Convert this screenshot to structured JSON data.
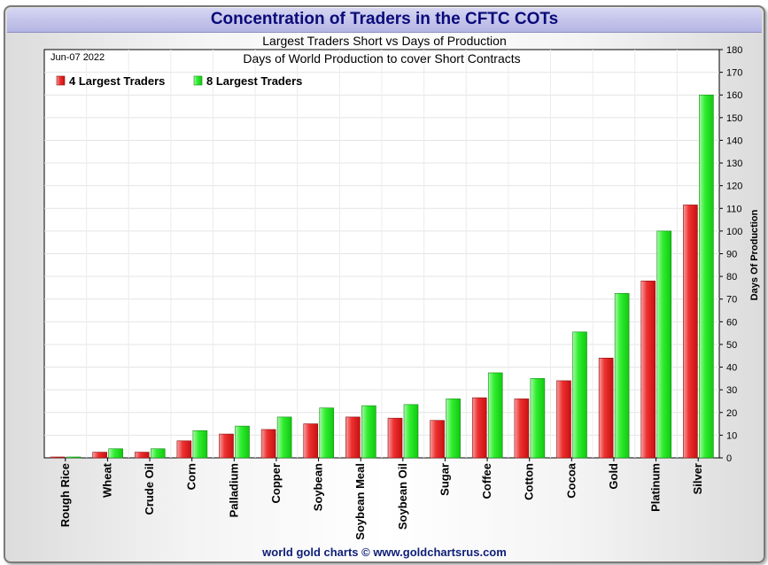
{
  "header": {
    "title": "Concentration of Traders in the CFTC COTs",
    "subtitle": "Largest Traders Short vs Days of Production"
  },
  "footer": {
    "text": "world gold charts © www.goldchartsrus.com"
  },
  "colors": {
    "title": "#0a0a7a",
    "series_4": "#ee2222",
    "series_8": "#22ee22"
  },
  "chart_data": {
    "type": "bar",
    "title": "Days of World Production to cover Short Contracts",
    "date_label": "Jun-07  2022",
    "ylabel": "Days Of Production",
    "xlabel": "",
    "ylim": [
      0,
      180
    ],
    "ytick_step": 10,
    "grid": true,
    "legend_position": "top-left",
    "categories": [
      "Rough Rice",
      "Wheat",
      "Crude Oil",
      "Corn",
      "Palladium",
      "Copper",
      "Soybean",
      "Soybean Meal",
      "Soybean Oil",
      "Sugar",
      "Coffee",
      "Cotton",
      "Cocoa",
      "Gold",
      "Platinum",
      "Silver"
    ],
    "series": [
      {
        "name": "4 Largest Traders",
        "color": "#ee2222",
        "values": [
          0.3,
          2.5,
          2.5,
          7.5,
          10.5,
          12.5,
          15,
          18,
          17.5,
          16.5,
          26.5,
          26,
          34,
          44,
          78,
          111.5
        ]
      },
      {
        "name": "8 Largest Traders",
        "color": "#22ee22",
        "values": [
          0.2,
          4,
          4,
          12,
          14,
          18,
          22,
          23,
          23.5,
          26,
          37.5,
          35,
          55.5,
          72.5,
          100,
          160
        ]
      }
    ]
  }
}
